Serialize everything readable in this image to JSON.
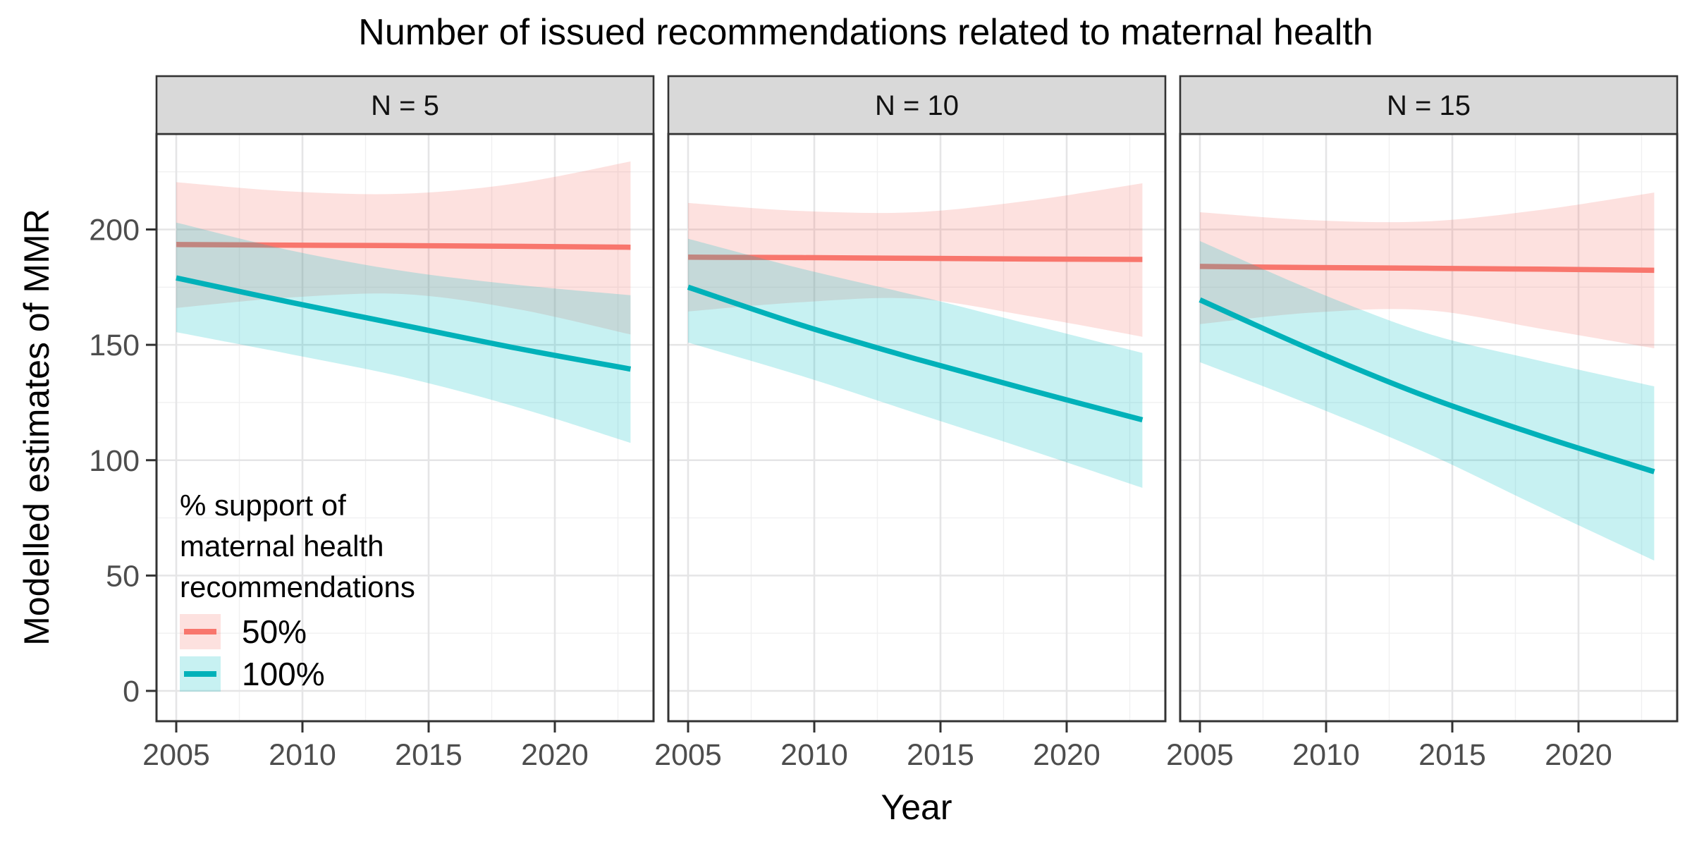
{
  "title": "Number of issued recommendations related to maternal health",
  "axes": {
    "x_label": "Year",
    "y_label": "Modelled estimates of MMR"
  },
  "legend": {
    "title_lines": [
      "% support of",
      "maternal health",
      "recommendations"
    ],
    "entries": [
      {
        "label": "50%",
        "line_color": "#F8766D",
        "fill_color": "rgba(248,118,109,0.22)"
      },
      {
        "label": "100%",
        "line_color": "#00B1B9",
        "fill_color": "rgba(0,191,196,0.22)"
      }
    ]
  },
  "colors": {
    "red_line": "#F8766D",
    "teal_line": "#00B1B9",
    "red_ribbon": "rgba(248,118,109,0.22)",
    "teal_ribbon": "rgba(0,191,196,0.22)",
    "grid_major": "#E5E5E6",
    "grid_minor": "#F0F0F1",
    "panel_border": "#333333",
    "strip_fill": "#D9D9D9",
    "strip_text": "#111111",
    "tick_mark": "#333333",
    "tick_text": "#4D4D4D",
    "panel_bg": "#FFFFFF"
  },
  "chart_data": {
    "type": "line",
    "title": "Number of issued recommendations related to maternal health",
    "xlabel": "Year",
    "ylabel": "Modelled estimates of MMR",
    "x_ticks": [
      2005,
      2010,
      2015,
      2020
    ],
    "x_minor_ticks": [
      2007.5,
      2012.5,
      2017.5,
      2022.5
    ],
    "y_ticks": [
      0,
      50,
      100,
      150,
      200
    ],
    "y_minor_ticks": [
      25,
      75,
      125,
      175,
      225
    ],
    "xlim": [
      2004.2,
      2023.9
    ],
    "ylim": [
      -13,
      241
    ],
    "grid": true,
    "legend_position": "inside bottom-left of first facet",
    "x": [
      2005,
      2009.5,
      2014,
      2018.5,
      2023
    ],
    "facets": [
      {
        "label": "N = 5",
        "series": [
          {
            "name": "50%",
            "line": [
              193.5,
              193.2,
              193.0,
              192.7,
              192.3
            ],
            "upper": [
              220.5,
              216.5,
              215.5,
              220.0,
              229.5
            ],
            "lower": [
              166.0,
              170.5,
              172.0,
              165.5,
              154.5
            ]
          },
          {
            "name": "100%",
            "line": [
              179.0,
              168.5,
              158.5,
              148.5,
              139.5
            ],
            "upper": [
              203.0,
              191.0,
              182.0,
              176.0,
              171.5
            ],
            "lower": [
              155.5,
              146.0,
              136.0,
              123.0,
              107.5
            ]
          }
        ]
      },
      {
        "label": "N = 10",
        "series": [
          {
            "name": "50%",
            "line": [
              188.0,
              187.8,
              187.5,
              187.2,
              187.0
            ],
            "upper": [
              211.5,
              208.0,
              207.5,
              212.5,
              220.0
            ],
            "lower": [
              164.5,
              168.5,
              170.0,
              162.5,
              153.5
            ]
          },
          {
            "name": "100%",
            "line": [
              175.0,
              158.5,
              144.0,
              130.5,
              117.5
            ],
            "upper": [
              196.0,
              183.0,
              171.5,
              159.0,
              146.5
            ],
            "lower": [
              151.0,
              136.5,
              120.5,
              104.5,
              88.0
            ]
          }
        ]
      },
      {
        "label": "N = 15",
        "series": [
          {
            "name": "50%",
            "line": [
              184.0,
              183.5,
              183.2,
              182.8,
              182.3
            ],
            "upper": [
              207.5,
              204.0,
              203.5,
              208.5,
              216.0
            ],
            "lower": [
              159.0,
              164.0,
              165.0,
              157.0,
              148.5
            ]
          },
          {
            "name": "100%",
            "line": [
              169.5,
              147.5,
              127.5,
              110.5,
              95.0
            ],
            "upper": [
              195.0,
              173.5,
              155.0,
              143.0,
              132.0
            ],
            "lower": [
              142.5,
              123.5,
              103.0,
              79.5,
              56.5
            ]
          }
        ]
      }
    ]
  }
}
